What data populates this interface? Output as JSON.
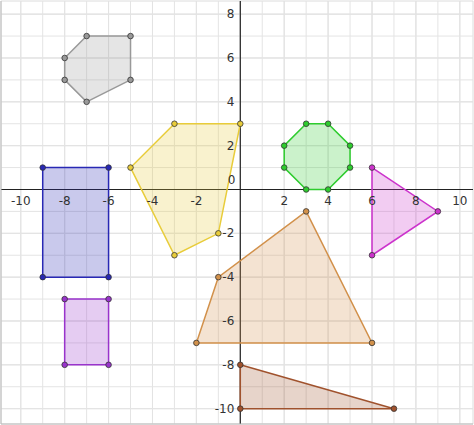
{
  "chart_data": {
    "type": "polygon",
    "xlim": [
      -10.9,
      10.6
    ],
    "ylim": [
      -10.7,
      8.6
    ],
    "xticks": [
      -10,
      -8,
      -6,
      -4,
      -2,
      0,
      2,
      4,
      6,
      8,
      10
    ],
    "yticks": [
      -10,
      -8,
      -6,
      -4,
      -2,
      0,
      2,
      4,
      6,
      8
    ],
    "grid": true,
    "marker": "circle",
    "series": [
      {
        "color": "#999999",
        "x": [
          -7,
          -5,
          -5,
          -7,
          -8,
          -8
        ],
        "values": [
          7,
          7,
          5,
          4,
          5,
          6
        ]
      },
      {
        "color": "#e8cc3a",
        "x": [
          -3,
          0,
          -1,
          -3,
          -5
        ],
        "values": [
          3,
          3,
          -2,
          -3,
          1
        ]
      },
      {
        "color": "#2ecc2e",
        "x": [
          3,
          4,
          5,
          5,
          4,
          3,
          2,
          2
        ],
        "values": [
          3,
          3,
          2,
          1,
          0,
          0,
          1,
          2
        ]
      },
      {
        "color": "#cc33cc",
        "x": [
          6,
          9,
          6
        ],
        "values": [
          1,
          -1,
          -3
        ]
      },
      {
        "color": "#2828b4",
        "x": [
          -9,
          -6,
          -6,
          -9
        ],
        "values": [
          1,
          1,
          -4,
          -4
        ]
      },
      {
        "color": "#9933cc",
        "x": [
          -8,
          -6,
          -6,
          -8
        ],
        "values": [
          -5,
          -5,
          -8,
          -8
        ]
      },
      {
        "color": "#d2914b",
        "x": [
          3,
          6,
          -2,
          -1
        ],
        "values": [
          -1,
          -7,
          -7,
          -4
        ]
      },
      {
        "color": "#a0522d",
        "x": [
          0,
          7,
          0
        ],
        "values": [
          -8,
          -10,
          -10
        ]
      }
    ]
  }
}
